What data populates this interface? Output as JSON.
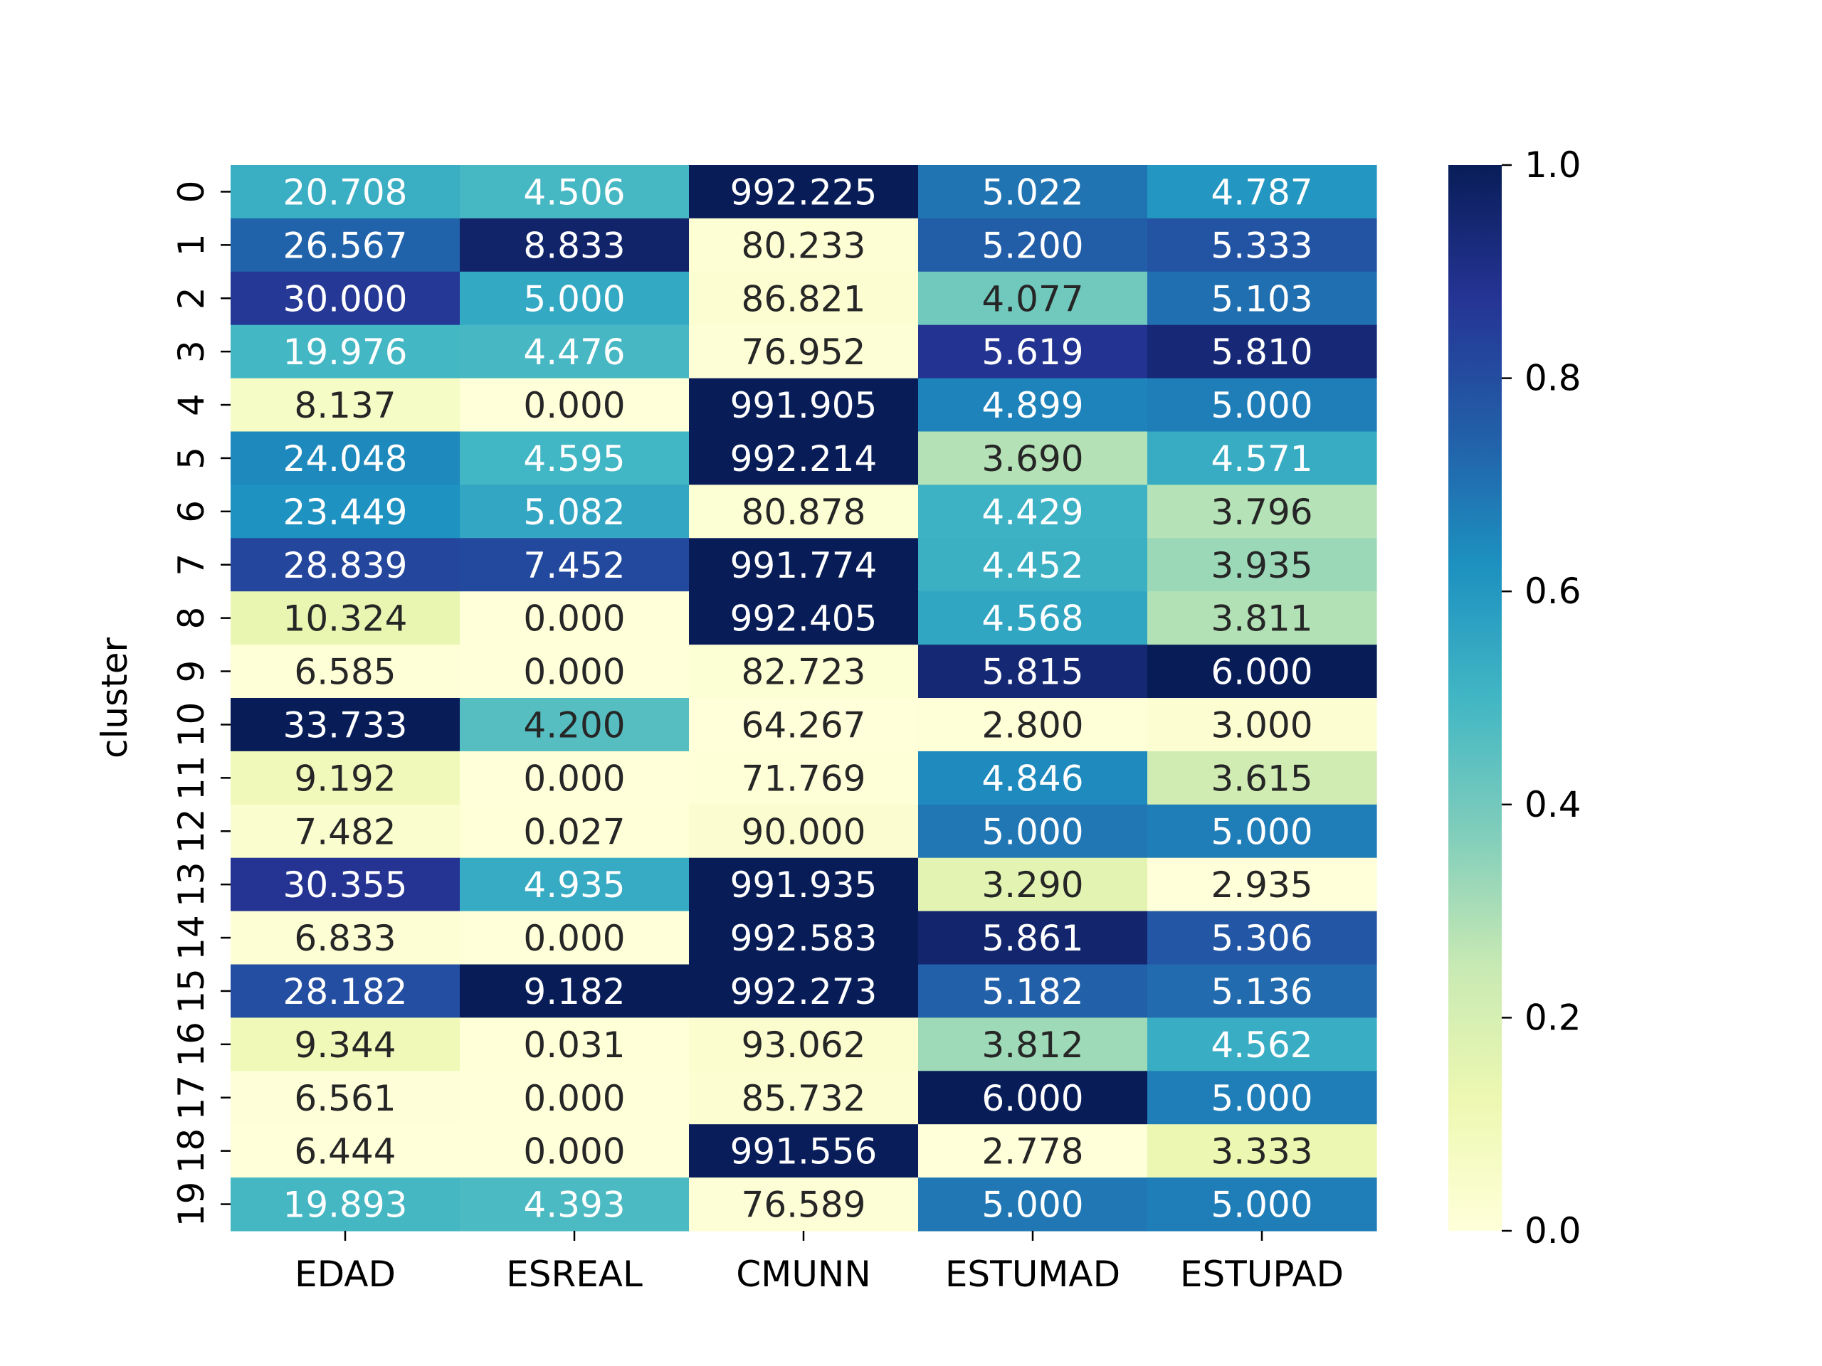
{
  "chart_data": {
    "type": "heatmap",
    "title": "",
    "xlabel": "",
    "ylabel": "cluster",
    "x_categories": [
      "EDAD",
      "ESREAL",
      "CMUNN",
      "ESTUMAD",
      "ESTUPAD"
    ],
    "y_categories": [
      "0",
      "1",
      "2",
      "3",
      "4",
      "5",
      "6",
      "7",
      "8",
      "9",
      "10",
      "11",
      "12",
      "13",
      "14",
      "15",
      "16",
      "17",
      "18",
      "19"
    ],
    "y_tick_labels": [
      "0",
      "1",
      "2",
      "3",
      "4",
      "5",
      "6",
      "7",
      "8",
      "9",
      "10",
      "11",
      "12",
      "13",
      "14",
      "15",
      "16",
      "17",
      "18",
      "19"
    ],
    "values": [
      [
        20.708,
        4.506,
        992.225,
        5.022,
        4.787
      ],
      [
        26.567,
        8.833,
        80.233,
        5.2,
        5.333
      ],
      [
        30.0,
        5.0,
        86.821,
        4.077,
        5.103
      ],
      [
        19.976,
        4.476,
        76.952,
        5.619,
        5.81
      ],
      [
        8.137,
        0.0,
        991.905,
        4.899,
        5.0
      ],
      [
        24.048,
        4.595,
        992.214,
        3.69,
        4.571
      ],
      [
        23.449,
        5.082,
        80.878,
        4.429,
        3.796
      ],
      [
        28.839,
        7.452,
        991.774,
        4.452,
        3.935
      ],
      [
        10.324,
        0.0,
        992.405,
        4.568,
        3.811
      ],
      [
        6.585,
        0.0,
        82.723,
        5.815,
        6.0
      ],
      [
        33.733,
        4.2,
        64.267,
        2.8,
        3.0
      ],
      [
        9.192,
        0.0,
        71.769,
        4.846,
        3.615
      ],
      [
        7.482,
        0.027,
        90.0,
        5.0,
        5.0
      ],
      [
        30.355,
        4.935,
        991.935,
        3.29,
        2.935
      ],
      [
        6.833,
        0.0,
        992.583,
        5.861,
        5.306
      ],
      [
        28.182,
        9.182,
        992.273,
        5.182,
        5.136
      ],
      [
        9.344,
        0.031,
        93.062,
        3.812,
        4.562
      ],
      [
        6.561,
        0.0,
        85.732,
        6.0,
        5.0
      ],
      [
        6.444,
        0.0,
        991.556,
        2.778,
        3.333
      ],
      [
        19.893,
        4.393,
        76.589,
        5.0,
        5.0
      ]
    ],
    "value_format_decimals": 3,
    "normalization": "per-column",
    "colormap": "YlGnBu",
    "colormap_stops": [
      "#ffffd9",
      "#edf8b1",
      "#c7e9b4",
      "#7fcdbb",
      "#41b6c4",
      "#1d91c0",
      "#225ea8",
      "#253494",
      "#081d58"
    ],
    "colorbar": {
      "range": [
        0.0,
        1.0
      ],
      "ticks": [
        0.0,
        0.2,
        0.4,
        0.6,
        0.8,
        1.0
      ],
      "tick_labels": [
        "0.0",
        "0.2",
        "0.4",
        "0.6",
        "0.8",
        "1.0"
      ]
    },
    "grid": false,
    "annot_text_colors": {
      "dark": "#262626",
      "light": "#ffffff"
    }
  }
}
